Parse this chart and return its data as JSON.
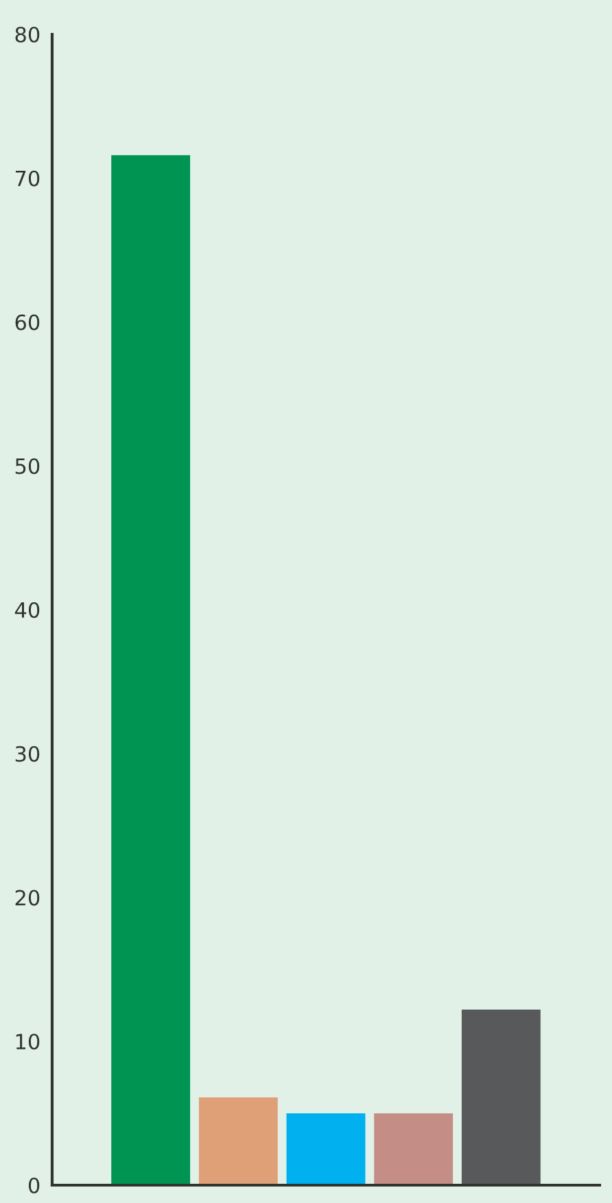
{
  "chart_data": {
    "type": "bar",
    "categories": [
      null,
      null,
      null,
      null,
      null
    ],
    "values": [
      71.6,
      6.1,
      5.0,
      5.0,
      12.2
    ],
    "colors": [
      "#009452",
      "#dfa077",
      "#00b0ef",
      "#c48e87",
      "#58595b"
    ],
    "ylim": [
      0,
      80
    ],
    "yticks": [
      0,
      10,
      20,
      30,
      40,
      50,
      60,
      70,
      80
    ],
    "grid": false,
    "legend": false
  }
}
